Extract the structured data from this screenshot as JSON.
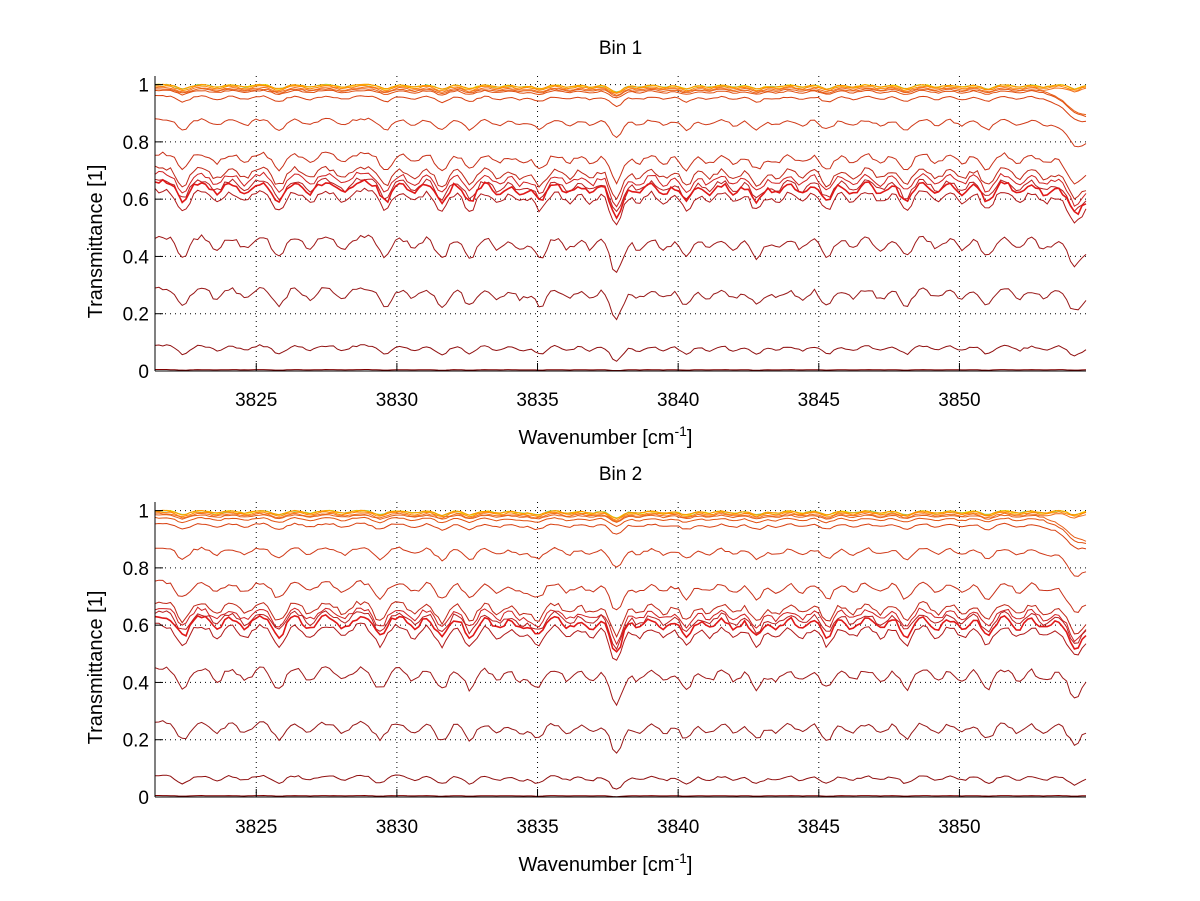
{
  "chart_data": [
    {
      "type": "line",
      "title": "Bin 1",
      "xlabel": "Wavenumber [cm^-1]",
      "xlabel_main": "Wavenumber [cm",
      "xlabel_sup": "-1",
      "xlabel_end": "]",
      "ylabel": "Transmittance [1]",
      "xlim": [
        3821.4,
        3854.5
      ],
      "ylim": [
        0,
        1.03
      ],
      "xticks": [
        3825,
        3830,
        3835,
        3840,
        3845,
        3850
      ],
      "yticks": [
        0,
        0.2,
        0.4,
        0.6,
        0.8,
        1
      ],
      "ytick_labels": [
        "0",
        "0.2",
        "0.4",
        "0.6",
        "0.8",
        "1"
      ],
      "grid": true,
      "legend": "none",
      "series_baselines": [
        1.0,
        1.0,
        1.0,
        0.995,
        0.99,
        0.985,
        0.98,
        0.96,
        0.88,
        0.76,
        0.71,
        0.69,
        0.67,
        0.66,
        0.63,
        0.47,
        0.29,
        0.09,
        0.005
      ],
      "series_colors": [
        "#7fd97f",
        "#e6d800",
        "#ff9900",
        "#ff8800",
        "#f07020",
        "#e86018",
        "#e05010",
        "#d84010",
        "#d03a18",
        "#c83018",
        "#c02818",
        "#d02020",
        "#b82020",
        "#e01818",
        "#b01818",
        "#a01818",
        "#981818",
        "#901010",
        "#800000"
      ],
      "absorption_lines": [
        3822.4,
        3823.6,
        3824.6,
        3825.8,
        3826.9,
        3828.1,
        3829.6,
        3830.6,
        3831.6,
        3832.6,
        3833.6,
        3834.4,
        3835.1,
        3836.1,
        3836.9,
        3837.8,
        3838.6,
        3839.5,
        3840.3,
        3841.1,
        3842.0,
        3842.8,
        3843.5,
        3844.4,
        3845.3,
        3846.2,
        3847.2,
        3848.1,
        3849.2,
        3850.1,
        3851.0,
        3852.1,
        3853.0,
        3854.1
      ]
    },
    {
      "type": "line",
      "title": "Bin 2",
      "xlabel": "Wavenumber [cm^-1]",
      "xlabel_main": "Wavenumber [cm",
      "xlabel_sup": "-1",
      "xlabel_end": "]",
      "ylabel": "Transmittance [1]",
      "xlim": [
        3821.4,
        3854.5
      ],
      "ylim": [
        0,
        1.03
      ],
      "xticks": [
        3825,
        3830,
        3835,
        3840,
        3845,
        3850
      ],
      "yticks": [
        0,
        0.2,
        0.4,
        0.6,
        0.8,
        1
      ],
      "ytick_labels": [
        "0",
        "0.2",
        "0.4",
        "0.6",
        "0.8",
        "1"
      ],
      "grid": true,
      "legend": "none",
      "series_baselines": [
        1.0,
        1.0,
        1.0,
        0.995,
        0.99,
        0.985,
        0.975,
        0.955,
        0.87,
        0.75,
        0.68,
        0.66,
        0.645,
        0.63,
        0.6,
        0.45,
        0.26,
        0.075,
        0.005
      ],
      "series_colors": [
        "#7fd97f",
        "#e6d800",
        "#ff9900",
        "#ff8800",
        "#f07020",
        "#e86018",
        "#e05010",
        "#d84010",
        "#d03a18",
        "#c83018",
        "#c02818",
        "#d02020",
        "#b82020",
        "#e01818",
        "#b01818",
        "#a01818",
        "#981818",
        "#901010",
        "#800000"
      ],
      "absorption_lines": [
        3822.4,
        3823.6,
        3824.6,
        3825.8,
        3826.9,
        3828.1,
        3829.4,
        3830.6,
        3831.6,
        3832.6,
        3833.6,
        3834.4,
        3835.0,
        3836.1,
        3836.9,
        3837.8,
        3838.6,
        3839.5,
        3840.3,
        3841.1,
        3842.0,
        3842.8,
        3843.5,
        3844.4,
        3845.3,
        3846.2,
        3847.2,
        3848.1,
        3849.2,
        3850.1,
        3851.0,
        3852.1,
        3853.0,
        3854.1
      ]
    }
  ]
}
